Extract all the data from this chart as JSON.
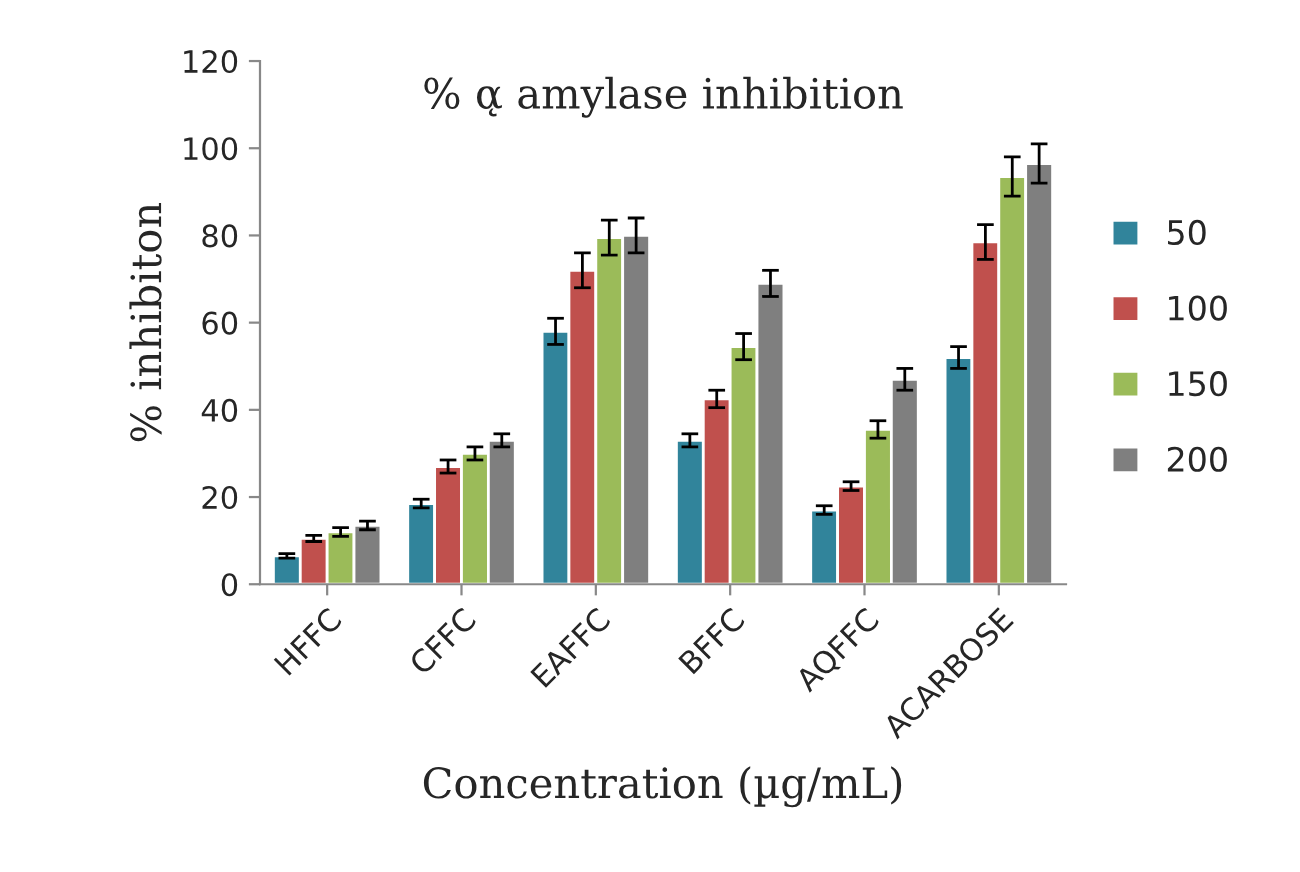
{
  "chart_data": {
    "type": "bar",
    "title": "% α̨ amylase inhibition",
    "xlabel": "Concentration (µg/mL)",
    "ylabel": "% inhibiton",
    "categories": [
      "HFFC",
      "CFFC",
      "EAFFC",
      "BFFC",
      "AQFFC",
      "ACARBOSE"
    ],
    "series": [
      {
        "name": "50",
        "color": "#31849b",
        "values": [
          6.5,
          18.5,
          58,
          33,
          17,
          52
        ],
        "errors": [
          0.5,
          1,
          3,
          1.5,
          1,
          2.5
        ]
      },
      {
        "name": "100",
        "color": "#c0504d",
        "values": [
          10.5,
          27,
          72,
          42.5,
          22.5,
          78.5
        ],
        "errors": [
          0.7,
          1.5,
          4,
          2,
          1,
          4
        ]
      },
      {
        "name": "150",
        "color": "#9bbb59",
        "values": [
          12,
          30,
          79.5,
          54.5,
          35.5,
          93.5
        ],
        "errors": [
          1,
          1.5,
          4,
          3,
          2,
          4.5
        ]
      },
      {
        "name": "200",
        "color": "#7f7f7f",
        "values": [
          13.5,
          33,
          80,
          69,
          47,
          96.5
        ],
        "errors": [
          1,
          1.5,
          4,
          3,
          2.5,
          4.5
        ]
      }
    ],
    "ylim": [
      0,
      120
    ],
    "yticks": [
      0,
      20,
      40,
      60,
      80,
      100,
      120
    ],
    "grid": false,
    "legend": "right"
  }
}
